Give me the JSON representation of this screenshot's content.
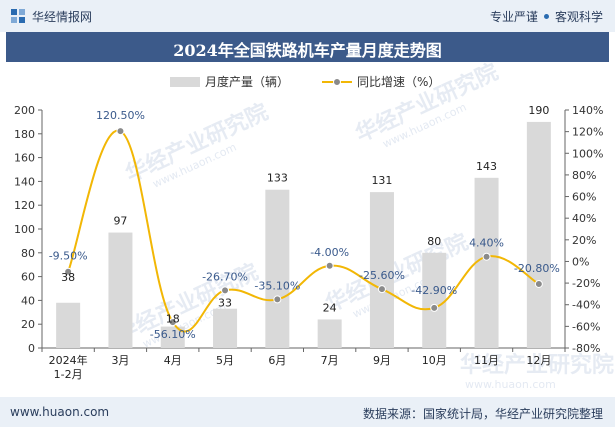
{
  "header": {
    "brand": "华经情报网",
    "slogan_left": "专业严谨",
    "slogan_right": "客观科学"
  },
  "title": "2024年全国铁路机车产量月度走势图",
  "watermark": {
    "main": "华经产业研究院",
    "url": "www.huaon.com"
  },
  "footer": {
    "website": "www.huaon.com",
    "source": "数据来源：国家统计局，华经产业研究院整理"
  },
  "colors": {
    "bar": "#d9d9d9",
    "line": "#f2b705",
    "marker": "#8a8a8a",
    "title_bg": "#3c5a8a"
  },
  "chart_data": {
    "type": "bar",
    "categories": [
      "2024年\n1-2月",
      "3月",
      "4月",
      "5月",
      "6月",
      "7月",
      "9月",
      "10月",
      "11月",
      "12月"
    ],
    "series": [
      {
        "name": "月度产量（辆）",
        "type": "bar",
        "axis": "left",
        "values": [
          38,
          97,
          18,
          33,
          133,
          24,
          131,
          80,
          143,
          190
        ],
        "labels": [
          "38",
          "97",
          "18",
          "33",
          "133",
          "24",
          "131",
          "80",
          "143",
          "190"
        ]
      },
      {
        "name": "同比增速（%）",
        "type": "line",
        "axis": "right",
        "values": [
          -9.5,
          120.5,
          -56.1,
          -26.7,
          -35.1,
          -4.0,
          -25.6,
          -42.9,
          4.4,
          -20.8
        ],
        "labels": [
          "-9.50%",
          "120.50%",
          "-56.10%",
          "-26.70%",
          "-35.10%",
          "-4.00%",
          "-25.60%",
          "-42.90%",
          "4.40%",
          "-20.80%"
        ]
      }
    ],
    "y_left": {
      "min": 0,
      "max": 200,
      "ticks": [
        0,
        20,
        40,
        60,
        80,
        100,
        120,
        140,
        160,
        180,
        200
      ],
      "tick_labels": [
        "0",
        "20",
        "40",
        "60",
        "80",
        "100",
        "120",
        "140",
        "160",
        "180",
        "200"
      ]
    },
    "y_right": {
      "min": -80,
      "max": 140,
      "ticks": [
        -80,
        -60,
        -40,
        -20,
        0,
        20,
        40,
        60,
        80,
        100,
        120,
        140
      ],
      "tick_labels": [
        "-80%",
        "-60%",
        "-40%",
        "-20%",
        "0%",
        "20%",
        "40%",
        "60%",
        "80%",
        "100%",
        "120%",
        "140%"
      ]
    },
    "legend_position": "top-center",
    "grid": false
  }
}
